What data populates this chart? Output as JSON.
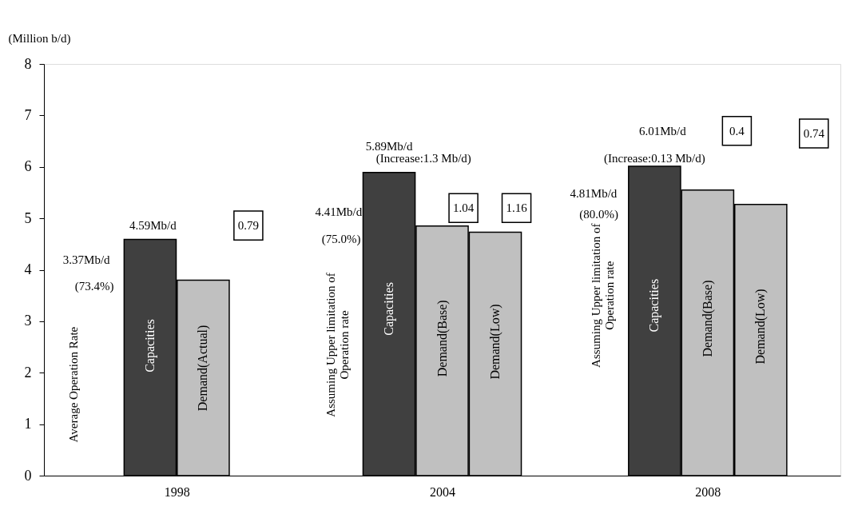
{
  "chart_data": {
    "type": "bar",
    "ylabel": "(Million b/d)",
    "categories": [
      "1998",
      "2004",
      "2008"
    ],
    "series": [
      {
        "name": "Capacities",
        "color": "#404040",
        "values": [
          4.59,
          5.89,
          6.01
        ]
      },
      {
        "name": "Demand(Actual)",
        "color": "#c0c0c0",
        "values": [
          3.8,
          null,
          null
        ]
      },
      {
        "name": "Demand(Base)",
        "color": "#c0c0c0",
        "values": [
          null,
          4.85,
          5.55
        ]
      },
      {
        "name": "Demand(Low)",
        "color": "#c0c0c0",
        "values": [
          null,
          4.73,
          5.27
        ]
      }
    ],
    "ylim": [
      0,
      8
    ],
    "yticks": [
      0,
      1,
      2,
      3,
      4,
      5,
      6,
      7,
      8
    ],
    "grid": false,
    "legend": false,
    "annotations": [
      "3.37Mb/d",
      "(73.4%)",
      "Average Operation Rate",
      "4.59Mb/d",
      "0.79",
      "5.89Mb/d",
      "(Increase:1.3 Mb/d)",
      "4.41Mb/d",
      "(75.0%)",
      "Assuming Upper limitation of\nOperation rate",
      "1.04",
      "1.16",
      "6.01Mb/d",
      "(Increase:0.13 Mb/d)",
      "4.81Mb/d",
      "(80.0%)",
      "Assuming Upper limitation of\nOperation rate",
      "0.4",
      "0.74"
    ]
  }
}
